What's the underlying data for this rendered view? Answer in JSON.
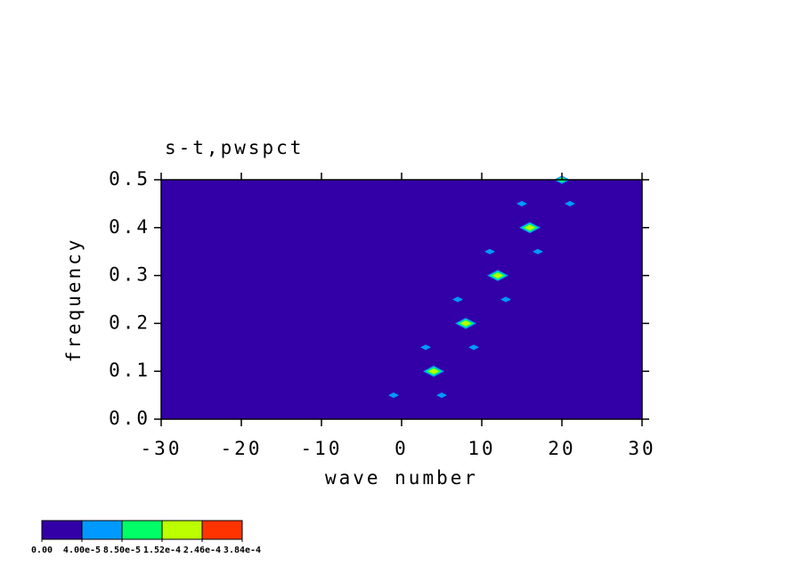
{
  "chart_data": {
    "type": "contour",
    "title": "s-t,pwspct",
    "x_label": "wave number",
    "y_label": "frequency",
    "xlim": [
      -30,
      30
    ],
    "ylim": [
      0,
      0.5
    ],
    "xticks": [
      -30,
      -20,
      -10,
      0,
      10,
      20,
      30
    ],
    "yticks": [
      {
        "value": 0,
        "label": "0.0"
      },
      0.1,
      0.2,
      0.3,
      0.4,
      0.5
    ],
    "background_color": "#3300a8",
    "levels": [
      {
        "value": 0,
        "label": "0.00"
      },
      {
        "value": 4e-05,
        "label": "4.00e-5"
      },
      {
        "value": 8.5e-05,
        "label": "8.50e-5"
      },
      {
        "value": 0.000152,
        "label": "1.52e-4"
      },
      {
        "value": 0.000246,
        "label": "2.46e-4"
      },
      {
        "value": 0.000384,
        "label": "3.84e-4"
      }
    ],
    "colors": [
      "#3300a8",
      "#0099ff",
      "#00ff66",
      "#bbff00",
      "#ff3300"
    ],
    "x": [
      -1,
      5,
      4,
      3,
      9,
      8,
      7,
      13,
      12,
      11,
      17,
      16,
      15,
      21,
      20
    ],
    "y": [
      0.05,
      0.05,
      0.1,
      0.15,
      0.15,
      0.2,
      0.25,
      0.25,
      0.3,
      0.35,
      0.35,
      0.4,
      0.45,
      0.45,
      0.5
    ],
    "values": [
      6e-05,
      6e-05,
      0.0002,
      6e-05,
      6e-05,
      0.0002,
      6e-05,
      6e-05,
      0.0002,
      6e-05,
      6e-05,
      0.0002,
      6e-05,
      6e-05,
      0.00012
    ]
  }
}
